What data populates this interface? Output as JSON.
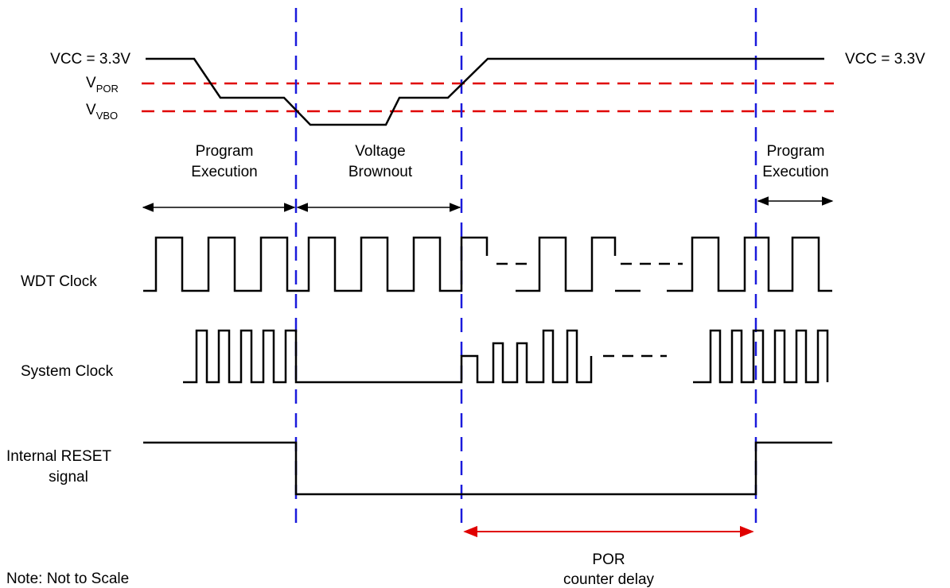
{
  "labels": {
    "vcc_left": "VCC = 3.3V",
    "vcc_right": "VCC = 3.3V",
    "vpor_main": "V",
    "vpor_sub": "POR",
    "vvbo_main": "V",
    "vvbo_sub": "VBO",
    "program_exec_left_1": "Program",
    "program_exec_left_2": "Execution",
    "brownout_1": "Voltage",
    "brownout_2": "Brownout",
    "program_exec_right_1": "Program",
    "program_exec_right_2": "Execution",
    "wdt_clock": "WDT Clock",
    "system_clock": "System Clock",
    "reset_1": "Internal RESET",
    "reset_2": "signal",
    "por_delay_1": "POR",
    "por_delay_2": "counter delay",
    "note": "Note: Not to Scale"
  },
  "colors": {
    "boundary_lines": "#1a1adc",
    "threshold_lines": "#e00000",
    "por_arrow": "#e00000",
    "waveforms": "#000000"
  }
}
